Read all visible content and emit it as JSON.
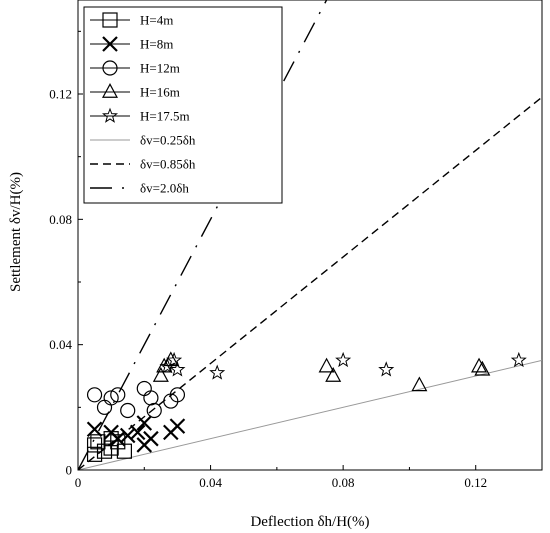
{
  "chart_data": {
    "type": "scatter",
    "xlabel": "Deflection δh/H(%)",
    "ylabel": "Settlement δv/H(%)",
    "xlim": [
      0,
      0.14
    ],
    "ylim": [
      0,
      0.15
    ],
    "x_ticks": [
      {
        "value": 0,
        "label": "0"
      },
      {
        "value": 0.04,
        "label": "0.04"
      },
      {
        "value": 0.08,
        "label": "0.08"
      },
      {
        "value": 0.12,
        "label": "0.12"
      }
    ],
    "y_ticks": [
      {
        "value": 0,
        "label": "0"
      },
      {
        "value": 0.04,
        "label": "0.04"
      },
      {
        "value": 0.08,
        "label": "0.08"
      },
      {
        "value": 0.12,
        "label": "0.12"
      }
    ],
    "grid": false,
    "legend_position": "top-left",
    "series": [
      {
        "name": "H=4m",
        "marker": "square",
        "points": [
          [
            0.005,
            0.005
          ],
          [
            0.005,
            0.008
          ],
          [
            0.008,
            0.006
          ],
          [
            0.01,
            0.007
          ],
          [
            0.012,
            0.009
          ],
          [
            0.014,
            0.006
          ],
          [
            0.01,
            0.01
          ],
          [
            0.006,
            0.009
          ]
        ]
      },
      {
        "name": "H=8m",
        "marker": "x",
        "points": [
          [
            0.005,
            0.013
          ],
          [
            0.01,
            0.012
          ],
          [
            0.012,
            0.01
          ],
          [
            0.018,
            0.012
          ],
          [
            0.02,
            0.015
          ],
          [
            0.022,
            0.01
          ],
          [
            0.028,
            0.012
          ],
          [
            0.03,
            0.014
          ],
          [
            0.02,
            0.008
          ],
          [
            0.015,
            0.011
          ]
        ]
      },
      {
        "name": "H=12m",
        "marker": "circle",
        "points": [
          [
            0.005,
            0.024
          ],
          [
            0.008,
            0.02
          ],
          [
            0.01,
            0.023
          ],
          [
            0.012,
            0.024
          ],
          [
            0.015,
            0.019
          ],
          [
            0.02,
            0.026
          ],
          [
            0.022,
            0.023
          ],
          [
            0.023,
            0.019
          ],
          [
            0.028,
            0.022
          ],
          [
            0.03,
            0.024
          ]
        ]
      },
      {
        "name": "H=16m",
        "marker": "triangle",
        "points": [
          [
            0.025,
            0.03
          ],
          [
            0.026,
            0.033
          ],
          [
            0.028,
            0.035
          ],
          [
            0.075,
            0.033
          ],
          [
            0.077,
            0.03
          ],
          [
            0.103,
            0.027
          ],
          [
            0.121,
            0.033
          ],
          [
            0.122,
            0.032
          ]
        ]
      },
      {
        "name": "H=17.5m",
        "marker": "star",
        "points": [
          [
            0.027,
            0.033
          ],
          [
            0.029,
            0.035
          ],
          [
            0.03,
            0.032
          ],
          [
            0.042,
            0.031
          ],
          [
            0.08,
            0.035
          ],
          [
            0.093,
            0.032
          ],
          [
            0.133,
            0.035
          ]
        ]
      }
    ],
    "lines": [
      {
        "name": "δv=0.25δh",
        "slope": 0.25,
        "style": "solid",
        "color": "#999999"
      },
      {
        "name": "δv=0.85δh",
        "slope": 0.85,
        "style": "dashed",
        "color": "#000000"
      },
      {
        "name": "δv=2.0δh",
        "slope": 2.0,
        "style": "dash-dot",
        "color": "#000000"
      }
    ]
  }
}
